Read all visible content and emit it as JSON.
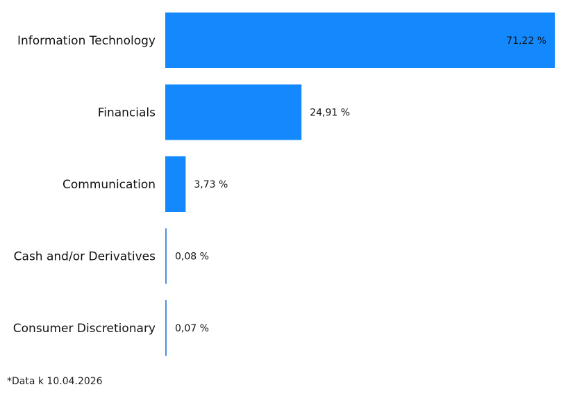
{
  "chart_data": {
    "type": "bar",
    "orientation": "horizontal",
    "categories": [
      "Information Technology",
      "Financials",
      "Communication",
      "Cash and/or Derivatives",
      "Consumer Discretionary"
    ],
    "values": [
      71.22,
      24.91,
      3.73,
      0.08,
      0.07
    ],
    "value_labels": [
      "71,22 %",
      "24,91 %",
      "3,73 %",
      "0,08 %",
      "0,07 %"
    ],
    "xlim": [
      0,
      71.22
    ],
    "grid": false,
    "bar_color": "#1489fe",
    "thin_bar_color": "#4a90e2"
  },
  "footnote": "*Data k 10.04.2026"
}
